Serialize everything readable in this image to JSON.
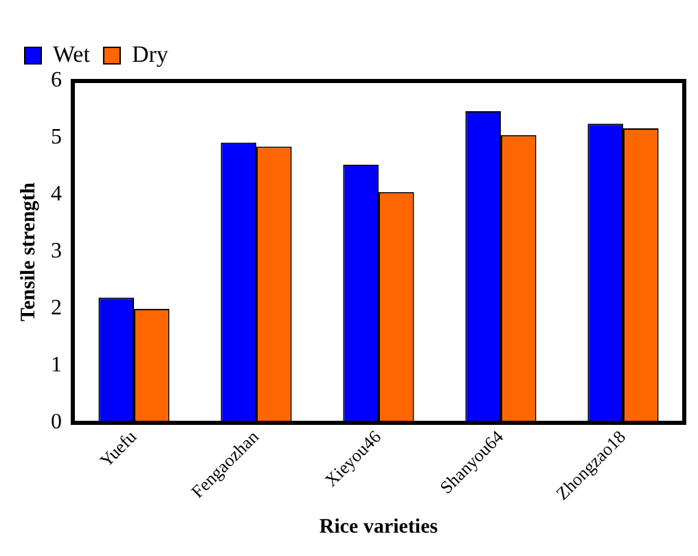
{
  "chart_data": {
    "type": "bar",
    "xlabel": "Rice varieties",
    "ylabel": "Tensile strength",
    "categories": [
      "Yuefu",
      "Fengaozhan",
      "Xieyou46",
      "Shanyou64",
      "Zhongzao18"
    ],
    "series": [
      {
        "name": "Wet",
        "color": "#0000ff",
        "values": [
          2.2,
          4.92,
          4.53,
          5.47,
          5.25
        ]
      },
      {
        "name": "Dry",
        "color": "#ff6600",
        "values": [
          2.0,
          4.85,
          4.05,
          5.05,
          5.17
        ]
      }
    ],
    "ylim": [
      0,
      6
    ],
    "yticks": [
      0,
      1,
      2,
      3,
      4,
      5,
      6
    ],
    "grid": false,
    "legend": "top left"
  }
}
